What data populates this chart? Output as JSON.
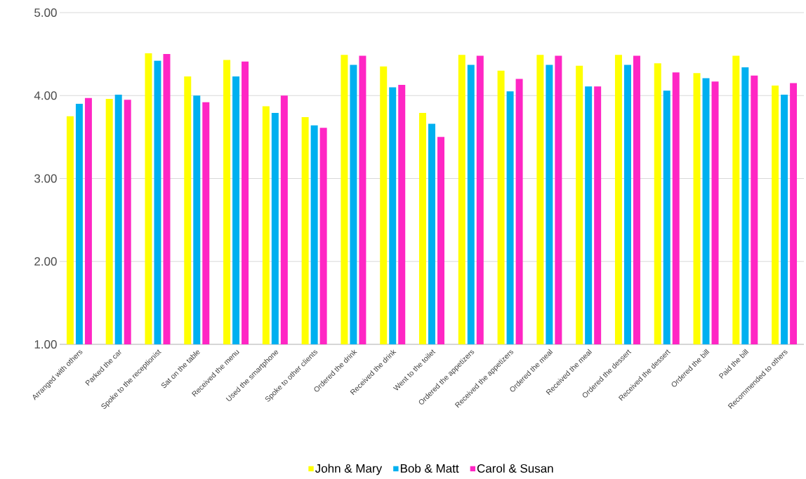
{
  "chart_data": {
    "type": "bar",
    "categories": [
      "Arranged with others",
      "Parked the car",
      "Spoke to the receptionist",
      "Sat on the table",
      "Received the menu",
      "Used the smartphone",
      "Spoke to other clients",
      "Ordered the drink",
      "Received the drink",
      "Went to the toilet",
      "Ordered the appetizers",
      "Received the appetizers",
      "Ordered the meal",
      "Received the meal",
      "Ordered the dessert",
      "Received the dessert",
      "Ordered the bill",
      "Paid the bill",
      "Recommended to others"
    ],
    "series": [
      {
        "name": "John & Mary",
        "color": "#ffff00",
        "values": [
          3.75,
          3.96,
          4.51,
          4.23,
          4.43,
          3.87,
          3.74,
          4.49,
          4.35,
          3.79,
          4.49,
          4.3,
          4.49,
          4.36,
          4.49,
          4.39,
          4.27,
          4.48,
          4.12
        ]
      },
      {
        "name": "Bob & Matt",
        "color": "#00b0f0",
        "values": [
          3.9,
          4.01,
          4.42,
          4.0,
          4.23,
          3.79,
          3.64,
          4.37,
          4.1,
          3.66,
          4.37,
          4.05,
          4.37,
          4.11,
          4.37,
          4.06,
          4.21,
          4.34,
          4.01
        ]
      },
      {
        "name": "Carol & Susan",
        "color": "#ff26c4",
        "values": [
          3.97,
          3.95,
          4.5,
          3.92,
          4.41,
          4.0,
          3.61,
          4.48,
          4.13,
          3.5,
          4.48,
          4.2,
          4.48,
          4.11,
          4.48,
          4.28,
          4.17,
          4.24,
          4.15
        ]
      }
    ],
    "ylim": [
      1,
      5
    ],
    "yticks": [
      {
        "value": 1,
        "label": "1.00"
      },
      {
        "value": 2,
        "label": "2.00"
      },
      {
        "value": 3,
        "label": "3.00"
      },
      {
        "value": 4,
        "label": "4.00"
      },
      {
        "value": 5,
        "label": "5.00"
      }
    ],
    "grid": "y",
    "legend": "bottom"
  }
}
